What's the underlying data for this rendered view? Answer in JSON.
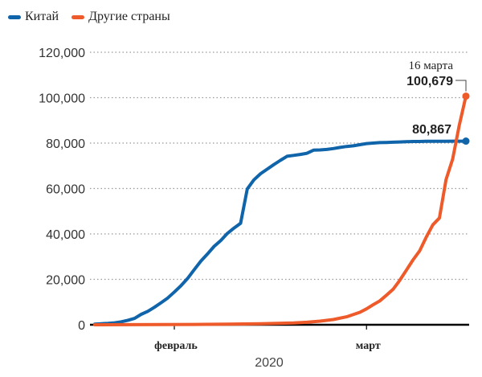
{
  "legend": {
    "china_label": "Китай",
    "other_label": "Другие страны"
  },
  "colors": {
    "china": "#0f64aa",
    "other": "#ee5a2a",
    "grid": "#999999",
    "axis": "#000000"
  },
  "chart_data": {
    "type": "line",
    "title": "",
    "xlabel": "2020",
    "ylabel": "",
    "ylim": [
      0,
      120000
    ],
    "yticks": [
      0,
      20000,
      40000,
      60000,
      80000,
      100000,
      120000
    ],
    "ytick_labels": [
      "0",
      "20,000",
      "40,000",
      "60,000",
      "80,000",
      "100,000",
      "120,000"
    ],
    "x_domain": [
      "2020-01-20",
      "2020-03-16"
    ],
    "month_ticks": [
      {
        "date": "2020-02-01",
        "label": "февраль"
      },
      {
        "date": "2020-03-01",
        "label": "март"
      }
    ],
    "year_label": "2020",
    "series": [
      {
        "name": "Китай",
        "color": "#0f64aa",
        "x": [
          "01-20",
          "01-21",
          "01-22",
          "01-23",
          "01-24",
          "01-25",
          "01-26",
          "01-27",
          "01-28",
          "01-29",
          "01-30",
          "01-31",
          "02-01",
          "02-02",
          "02-03",
          "02-04",
          "02-05",
          "02-06",
          "02-07",
          "02-08",
          "02-09",
          "02-10",
          "02-11",
          "02-12",
          "02-13",
          "02-14",
          "02-15",
          "02-16",
          "02-17",
          "02-18",
          "02-19",
          "02-20",
          "02-21",
          "02-22",
          "02-23",
          "02-24",
          "02-25",
          "02-26",
          "02-27",
          "02-28",
          "02-29",
          "03-01",
          "03-02",
          "03-03",
          "03-04",
          "03-05",
          "03-06",
          "03-07",
          "03-08",
          "03-09",
          "03-10",
          "03-11",
          "03-12",
          "03-13",
          "03-14",
          "03-15",
          "03-16"
        ],
        "y": [
          300,
          450,
          600,
          850,
          1300,
          2000,
          2800,
          4600,
          5900,
          7700,
          9700,
          11800,
          14400,
          17200,
          20400,
          24300,
          28000,
          31200,
          34500,
          37100,
          40200,
          42600,
          44700,
          59800,
          63800,
          66500,
          68500,
          70500,
          72400,
          74200,
          74600,
          75000,
          75500,
          76900,
          77000,
          77200,
          77600,
          78100,
          78500,
          78800,
          79300,
          79800,
          80000,
          80200,
          80300,
          80400,
          80500,
          80600,
          80700,
          80700,
          80800,
          80800,
          80800,
          80800,
          80850,
          80860,
          80867
        ]
      },
      {
        "name": "Другие страны",
        "color": "#ee5a2a",
        "x": [
          "01-20",
          "01-25",
          "01-30",
          "02-04",
          "02-09",
          "02-14",
          "02-19",
          "02-21",
          "02-23",
          "02-25",
          "02-27",
          "02-29",
          "03-01",
          "03-02",
          "03-03",
          "03-04",
          "03-05",
          "03-06",
          "03-07",
          "03-08",
          "03-09",
          "03-10",
          "03-11",
          "03-12",
          "03-13",
          "03-14",
          "03-15",
          "03-16"
        ],
        "y": [
          0,
          20,
          80,
          150,
          250,
          450,
          800,
          1100,
          1600,
          2300,
          3500,
          5500,
          7000,
          8800,
          10500,
          13000,
          15600,
          19500,
          24000,
          28500,
          32500,
          38500,
          44000,
          47000,
          64000,
          73000,
          88000,
          100679
        ]
      }
    ],
    "annotations": [
      {
        "label": "16 марта",
        "value": "100,679",
        "series": "Другие страны",
        "date": "03-16",
        "y": 100679
      },
      {
        "value": "80,867",
        "series": "Китай",
        "date": "03-16",
        "y": 80867
      }
    ]
  }
}
